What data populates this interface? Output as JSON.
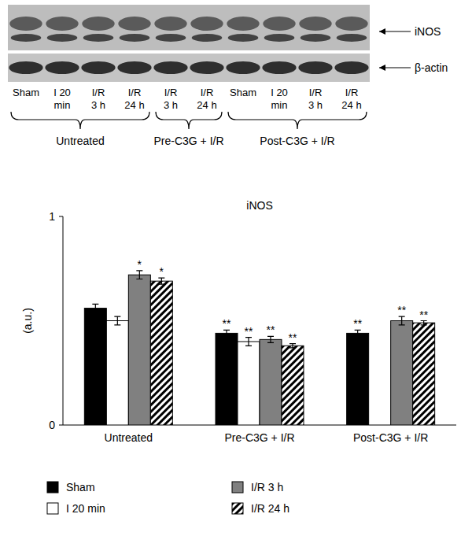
{
  "chart_data": {
    "type": "bar",
    "title": "iNOS",
    "y_label": "(a.u.)",
    "categories": [
      "Untreated",
      "Pre-C3G + I/R",
      "Post-C3G + I/R"
    ],
    "series": [
      {
        "name": "Sham",
        "color": "#000000",
        "values": [
          0.56,
          0.44,
          0.44
        ],
        "errors": [
          0.02,
          0.015,
          0.015
        ],
        "significance": [
          null,
          "**",
          "**"
        ]
      },
      {
        "name": "I 20 min",
        "color": "#ffffff",
        "values": [
          0.5,
          0.4,
          null
        ],
        "errors": [
          0.02,
          0.02,
          null
        ],
        "significance": [
          null,
          "**",
          null
        ]
      },
      {
        "name": "I/R 3 h",
        "color": "#808080",
        "values": [
          0.72,
          0.41,
          0.5
        ],
        "errors": [
          0.02,
          0.015,
          0.02
        ],
        "significance": [
          "*",
          "**",
          "**"
        ]
      },
      {
        "name": "I/R 24 h",
        "color": "#ffffff",
        "marker": "hatch",
        "values": [
          0.69,
          0.38,
          0.49
        ],
        "errors": [
          0.015,
          0.01,
          0.01
        ],
        "significance": [
          "*",
          "**",
          "**"
        ]
      }
    ],
    "ylim": [
      0,
      1
    ],
    "yticks": [
      0,
      1
    ],
    "grid": false,
    "legend": "bottom"
  },
  "blot": {
    "band_labels": [
      "iNOS",
      "β-actin"
    ],
    "groups": [
      {
        "label": "Untreated",
        "lanes": [
          [
            "Sham"
          ],
          [
            "I 20",
            "min"
          ],
          [
            "I/R",
            "3 h"
          ],
          [
            "I/R",
            "24 h"
          ]
        ]
      },
      {
        "label": "Pre-C3G + I/R",
        "lanes": [
          [
            "I/R",
            "3 h"
          ],
          [
            "I/R",
            "24 h"
          ]
        ]
      },
      {
        "label": "Post-C3G + I/R",
        "lanes": [
          [
            "Sham"
          ],
          [
            "I 20",
            "min"
          ],
          [
            "I/R",
            "3 h"
          ],
          [
            "I/R",
            "24 h"
          ]
        ]
      }
    ]
  }
}
